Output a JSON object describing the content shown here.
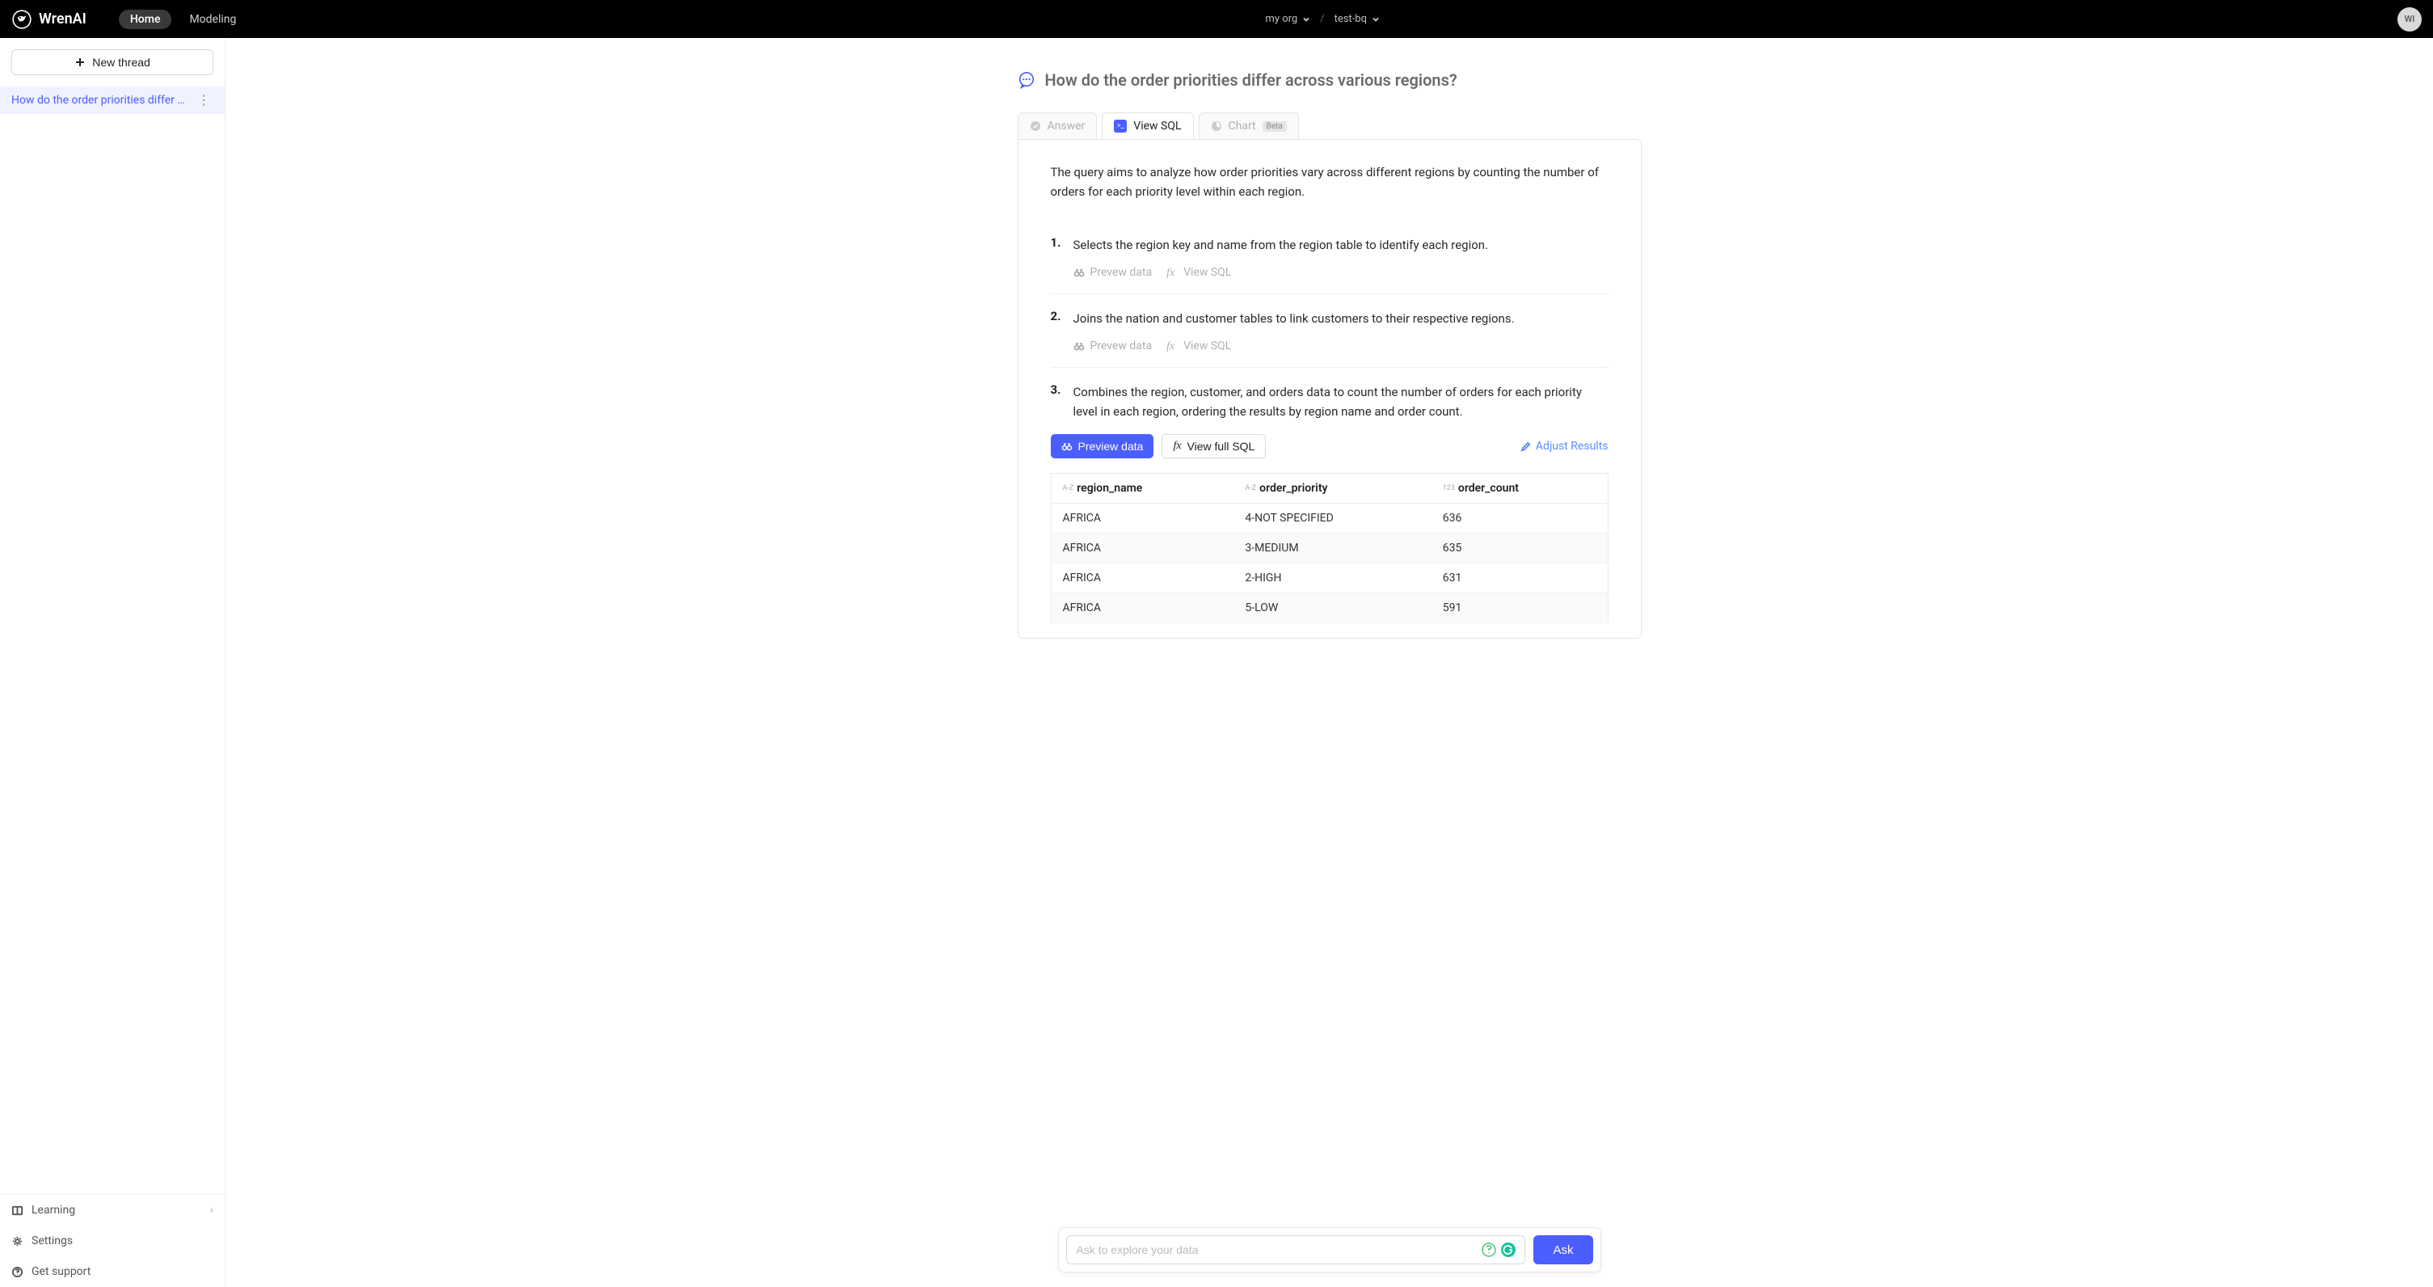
{
  "brand": "WrenAI",
  "nav": {
    "home": "Home",
    "modeling": "Modeling"
  },
  "breadcrumb": {
    "org": "my org",
    "project": "test-bq"
  },
  "avatar": "WI",
  "sidebar": {
    "new_thread": "New thread",
    "thread_title": "How do the order priorities differ …",
    "learning": "Learning",
    "settings": "Settings",
    "support": "Get support"
  },
  "question": "How do the order priorities differ across various regions?",
  "tabs": {
    "answer": "Answer",
    "view_sql": "View SQL",
    "chart": "Chart",
    "beta": "Beta"
  },
  "summary": "The query aims to analyze how order priorities vary across different regions by counting the number of orders for each priority level within each region.",
  "steps": [
    {
      "num": "1.",
      "text": "Selects the region key and name from the region table to identify each region."
    },
    {
      "num": "2.",
      "text": "Joins the nation and customer tables to link customers to their respective regions."
    },
    {
      "num": "3.",
      "text": "Combines the region, customer, and orders data to count the number of orders for each priority level in each region, ordering the results by region name and order count."
    }
  ],
  "actions": {
    "prevew_data": "Prevew data",
    "view_sql_link": "View SQL",
    "preview_data_btn": "Preview data",
    "view_full_sql": "View full SQL",
    "adjust_results": "Adjust Results"
  },
  "table": {
    "columns": [
      {
        "type": "A-Z",
        "name": "region_name"
      },
      {
        "type": "A-Z",
        "name": "order_priority"
      },
      {
        "type": "123",
        "name": "order_count"
      }
    ],
    "rows": [
      [
        "AFRICA",
        "4-NOT SPECIFIED",
        "636"
      ],
      [
        "AFRICA",
        "3-MEDIUM",
        "635"
      ],
      [
        "AFRICA",
        "2-HIGH",
        "631"
      ],
      [
        "AFRICA",
        "5-LOW",
        "591"
      ]
    ]
  },
  "ask": {
    "placeholder": "Ask to explore your data",
    "button": "Ask"
  },
  "colors": {
    "accent": "#4b5eff",
    "link": "#5b8dff",
    "muted": "#b0b0b0"
  }
}
